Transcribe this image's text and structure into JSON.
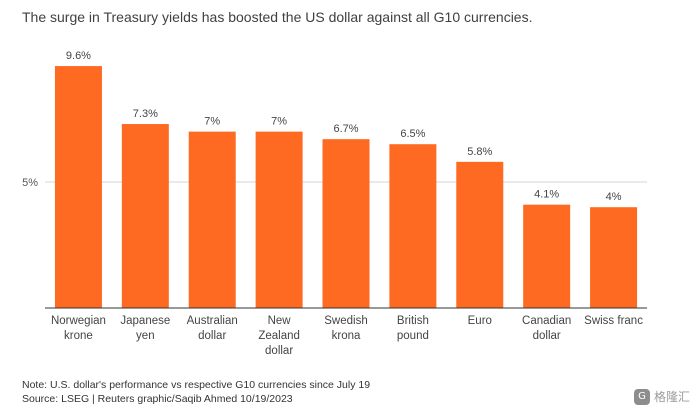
{
  "header": {
    "subtitle": "The surge in Treasury yields has boosted the US dollar against all G10 currencies."
  },
  "chart_data": {
    "type": "bar",
    "categories": [
      [
        "Norwegian",
        "krone"
      ],
      [
        "Japanese",
        "yen"
      ],
      [
        "Australian",
        "dollar"
      ],
      [
        "New",
        "Zealand",
        "dollar"
      ],
      [
        "Swedish",
        "krona"
      ],
      [
        "British",
        "pound"
      ],
      [
        "Euro"
      ],
      [
        "Canadian",
        "dollar"
      ],
      [
        "Swiss franc"
      ]
    ],
    "values": [
      9.6,
      7.3,
      7,
      7,
      6.7,
      6.5,
      5.8,
      4.1,
      4
    ],
    "value_labels": [
      "9.6%",
      "7.3%",
      "7%",
      "7%",
      "6.7%",
      "6.5%",
      "5.8%",
      "4.1%",
      "4%"
    ],
    "ytick": {
      "value": 5,
      "label": "5%"
    },
    "ylim": [
      0,
      10
    ],
    "grid": true,
    "bar_color": "#ff6a23"
  },
  "footer": {
    "note": "Note: U.S. dollar's performance vs respective G10 currencies since July 19",
    "source": "Source: LSEG | Reuters graphic/Saqib Ahmed 10/19/2023"
  },
  "watermark": {
    "icon": "gezhi-logo-icon",
    "icon_glyph": "G",
    "text": "格隆汇"
  }
}
